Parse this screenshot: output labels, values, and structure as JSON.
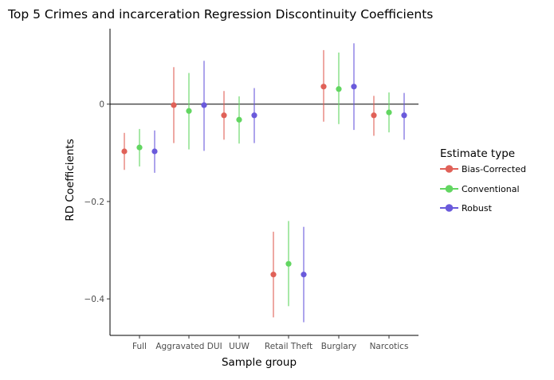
{
  "chart_data": {
    "type": "scatter",
    "title": "Top 5 Crimes and incarceration Regression Discontinuity Coefficients",
    "xlabel": "Sample group",
    "ylabel": "RD Coefficients",
    "categories": [
      "Full",
      "Aggravated DUI",
      "UUW",
      "Retail Theft",
      "Burglary",
      "Narcotics"
    ],
    "y_ticks": [
      {
        "value": 0,
        "label": "0"
      },
      {
        "value": -0.2,
        "label": "−0.2"
      },
      {
        "value": -0.4,
        "label": "−0.4"
      }
    ],
    "ylim": [
      -0.475,
      0.155
    ],
    "reference_line": 0,
    "grid": false,
    "legend": {
      "title": "Estimate type",
      "position": "right"
    },
    "series": [
      {
        "name": "Bias-Corrected",
        "color": "#E06158",
        "values": [
          -0.097,
          -0.002,
          -0.023,
          -0.35,
          0.036,
          -0.023
        ],
        "lower": [
          -0.135,
          -0.08,
          -0.073,
          -0.438,
          -0.036,
          -0.065
        ],
        "upper": [
          -0.059,
          0.076,
          0.027,
          -0.262,
          0.111,
          0.017
        ]
      },
      {
        "name": "Conventional",
        "color": "#62D661",
        "values": [
          -0.089,
          -0.014,
          -0.032,
          -0.328,
          0.031,
          -0.017
        ],
        "lower": [
          -0.128,
          -0.093,
          -0.081,
          -0.415,
          -0.041,
          -0.058
        ],
        "upper": [
          -0.051,
          0.064,
          0.016,
          -0.24,
          0.106,
          0.024
        ]
      },
      {
        "name": "Robust",
        "color": "#6A5ADB",
        "values": [
          -0.097,
          -0.002,
          -0.023,
          -0.35,
          0.036,
          -0.023
        ],
        "lower": [
          -0.141,
          -0.096,
          -0.08,
          -0.448,
          -0.053,
          -0.073
        ],
        "upper": [
          -0.054,
          0.089,
          0.033,
          -0.252,
          0.125,
          0.023
        ]
      }
    ]
  }
}
